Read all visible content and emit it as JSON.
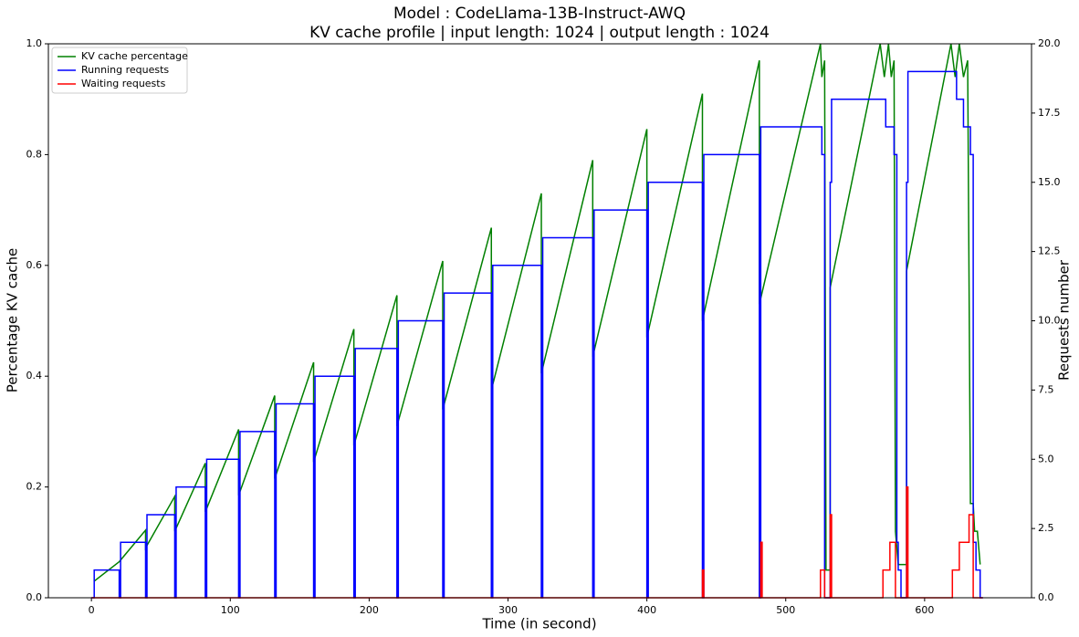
{
  "chart_data": {
    "type": "line",
    "title": "Model : CodeLlama-13B-Instruct-AWQ",
    "subtitle": "KV cache profile | input length: 1024 | output length : 1024",
    "xlabel": "Time (in second)",
    "ylabel": "Percentage KV cache",
    "y2label": "Requests number",
    "xlim": [
      -31,
      677
    ],
    "xticks": [
      0,
      100,
      200,
      300,
      400,
      500,
      600
    ],
    "ylim": [
      0,
      1
    ],
    "yticks": [
      {
        "value": 0,
        "label": "0.0"
      },
      0.2,
      0.4,
      0.6,
      0.8,
      {
        "value": 1,
        "label": "1.0"
      }
    ],
    "y2lim": [
      0,
      20
    ],
    "y2ticks": [
      {
        "value": 0,
        "label": "0.0"
      },
      2.5,
      {
        "value": 5,
        "label": "5.0"
      },
      7.5,
      {
        "value": 10,
        "label": "10.0"
      },
      12.5,
      {
        "value": 15,
        "label": "15.0"
      },
      17.5,
      {
        "value": 20,
        "label": "20.0"
      }
    ],
    "legend": "upper left",
    "series": [
      {
        "name": "KV cache percentage",
        "color": "#008000",
        "x": [
          2,
          20,
          20,
          39,
          39,
          60,
          60,
          82,
          82,
          106,
          106,
          132,
          132,
          160,
          160,
          189,
          189,
          220,
          220,
          253,
          253,
          288,
          288,
          324,
          324,
          361,
          361,
          400,
          400,
          440,
          440,
          481,
          481,
          525,
          526,
          528,
          529,
          532,
          532,
          568,
          571,
          574,
          576,
          578,
          579,
          581,
          587,
          587,
          619,
          622,
          625,
          628,
          631,
          633,
          635,
          636,
          638,
          640
        ],
        "values": [
          0.03,
          0.065,
          0.065,
          0.122,
          0.09,
          0.183,
          0.12,
          0.243,
          0.155,
          0.304,
          0.185,
          0.365,
          0.215,
          0.425,
          0.245,
          0.485,
          0.275,
          0.546,
          0.31,
          0.608,
          0.34,
          0.668,
          0.375,
          0.73,
          0.405,
          0.79,
          0.435,
          0.846,
          0.47,
          0.91,
          0.5,
          0.97,
          0.53,
          1.0,
          0.94,
          0.97,
          0.05,
          0.05,
          0.56,
          1.0,
          0.94,
          1.0,
          0.94,
          0.97,
          0.12,
          0.06,
          0.06,
          0.59,
          1.0,
          0.94,
          1.0,
          0.94,
          0.97,
          0.17,
          0.17,
          0.12,
          0.12,
          0.06
        ]
      },
      {
        "name": "Running requests",
        "color": "#0000ff",
        "axis": "y2",
        "x": [
          0,
          2,
          2,
          20,
          20,
          21,
          21,
          39,
          39,
          40,
          40,
          60,
          60,
          61,
          61,
          82,
          82,
          83,
          83,
          106,
          106,
          107,
          107,
          132,
          132,
          133,
          133,
          160,
          160,
          161,
          161,
          189,
          189,
          190,
          190,
          220,
          220,
          221,
          221,
          253,
          253,
          254,
          254,
          288,
          288,
          289,
          289,
          324,
          324,
          325,
          325,
          361,
          361,
          362,
          362,
          400,
          400,
          401,
          401,
          440,
          440,
          441,
          441,
          481,
          481,
          482,
          482,
          526,
          526,
          528,
          528,
          532,
          532,
          533,
          533,
          572,
          572,
          578,
          578,
          580,
          580,
          581,
          581,
          583,
          583,
          587,
          587,
          588,
          588,
          623,
          623,
          628,
          628,
          633,
          633,
          635,
          635,
          637,
          637,
          640,
          640,
          642
        ],
        "values": [
          0,
          0,
          1,
          1,
          0,
          0,
          2,
          2,
          0,
          0,
          3,
          3,
          0,
          0,
          4,
          4,
          0,
          0,
          5,
          5,
          0,
          0,
          6,
          6,
          0,
          0,
          7,
          7,
          0,
          0,
          8,
          8,
          0,
          0,
          9,
          9,
          0,
          0,
          10,
          10,
          0,
          0,
          11,
          11,
          0,
          0,
          12,
          12,
          0,
          0,
          13,
          13,
          0,
          0,
          14,
          14,
          0,
          0,
          15,
          15,
          0,
          0,
          16,
          16,
          0,
          0,
          17,
          17,
          16,
          16,
          0,
          0,
          15,
          15,
          18,
          18,
          17,
          17,
          16,
          16,
          2,
          2,
          1,
          1,
          0,
          0,
          15,
          15,
          19,
          19,
          18,
          18,
          17,
          17,
          16,
          16,
          2,
          2,
          1,
          1,
          0,
          0
        ]
      },
      {
        "name": "Waiting requests",
        "color": "#ff0000",
        "axis": "y2",
        "x": [
          0,
          440,
          440,
          441,
          441,
          482,
          482,
          483,
          483,
          525,
          525,
          528,
          528,
          532,
          532,
          533,
          533,
          570,
          570,
          575,
          575,
          579,
          579,
          587,
          587,
          588,
          588,
          620,
          620,
          625,
          625,
          632,
          632,
          635,
          635,
          642
        ],
        "values": [
          0,
          0,
          1,
          1,
          0,
          0,
          2,
          2,
          0,
          0,
          1,
          1,
          0,
          0,
          3,
          3,
          0,
          0,
          1,
          1,
          2,
          2,
          0,
          0,
          4,
          4,
          0,
          0,
          1,
          1,
          2,
          2,
          3,
          3,
          0,
          0
        ]
      }
    ]
  }
}
